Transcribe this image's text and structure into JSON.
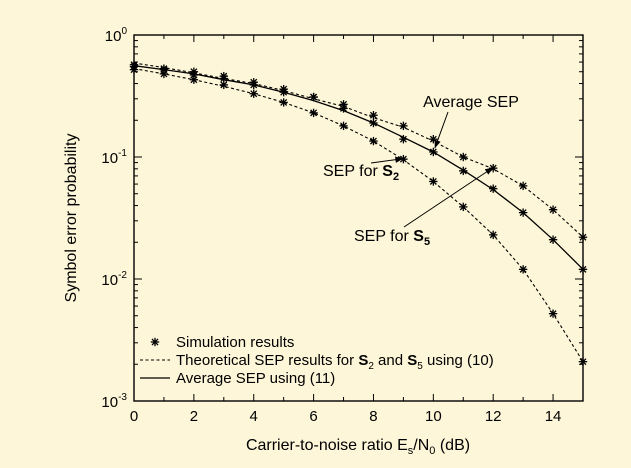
{
  "chart_data": {
    "type": "line",
    "xlabel": "Carrier-to-noise ratio E",
    "xlabel_sub1": "s",
    "xlabel_mid": "/N",
    "xlabel_sub2": "0",
    "xlabel_tail": " (dB)",
    "ylabel": "Symbol error probability",
    "x_ticks": [
      "0",
      "2",
      "4",
      "6",
      "8",
      "10",
      "12",
      "14"
    ],
    "y_ticks": [
      {
        "value": 1,
        "base": "10",
        "exp": "0"
      },
      {
        "value": 0.1,
        "base": "10",
        "exp": "-1"
      },
      {
        "value": 0.01,
        "base": "10",
        "exp": "-2"
      },
      {
        "value": 0.001,
        "base": "10",
        "exp": "-3"
      }
    ],
    "xlim": [
      0,
      15
    ],
    "ylim": [
      0.001,
      1
    ],
    "yscale": "log",
    "grid": false,
    "legend_position": "bottom-left",
    "x": [
      0,
      1,
      2,
      3,
      4,
      5,
      6,
      7,
      8,
      9,
      10,
      11,
      12,
      13,
      14,
      15
    ],
    "series": [
      {
        "style": "dashed",
        "values": [
          0.59,
          0.54,
          0.49,
          0.44,
          0.4,
          0.35,
          0.3,
          0.26,
          0.21,
          0.175,
          0.135,
          0.1,
          0.08,
          0.058,
          0.037,
          0.022
        ]
      },
      {
        "style": "solid",
        "values": [
          0.56,
          0.52,
          0.48,
          0.43,
          0.39,
          0.34,
          0.29,
          0.24,
          0.19,
          0.145,
          0.11,
          0.078,
          0.054,
          0.035,
          0.021,
          0.012
        ]
      },
      {
        "style": "dashed",
        "values": [
          0.53,
          0.48,
          0.43,
          0.38,
          0.33,
          0.28,
          0.23,
          0.18,
          0.135,
          0.095,
          0.063,
          0.039,
          0.023,
          0.012,
          0.0052,
          0.0021
        ]
      },
      {
        "style": "markers",
        "values": [
          0.57,
          0.53,
          0.5,
          0.46,
          0.41,
          0.36,
          0.31,
          0.27,
          0.22,
          0.18,
          0.14,
          0.1,
          0.081,
          0.058,
          0.037,
          0.022
        ]
      },
      {
        "style": "markers",
        "values": [
          0.55,
          0.52,
          0.47,
          0.44,
          0.39,
          0.34,
          0.31,
          0.25,
          0.19,
          0.14,
          0.11,
          0.077,
          0.055,
          0.035,
          0.021,
          0.012
        ]
      },
      {
        "style": "markers",
        "values": [
          0.52,
          0.48,
          0.43,
          0.39,
          0.33,
          0.28,
          0.23,
          0.18,
          0.135,
          0.096,
          0.063,
          0.039,
          0.023,
          0.012,
          0.0052,
          0.0021
        ]
      }
    ],
    "annotations": [
      {
        "text": "Average SEP",
        "bold_part": "",
        "sub": "",
        "arrow_to": [
          10.05,
          0.118
        ]
      },
      {
        "text": "SEP for ",
        "bold_part": "S",
        "sub": "2",
        "arrow_to": [
          9.0,
          0.097
        ]
      },
      {
        "text": "SEP for ",
        "bold_part": "S",
        "sub": "5",
        "arrow_to": [
          12.0,
          0.082
        ]
      }
    ],
    "legend": [
      {
        "style": "markers",
        "text": "Simulation results"
      },
      {
        "style": "dashed",
        "text_a": "Theoretical SEP results for ",
        "b1": "S",
        "s1": "2",
        "text_b": " and ",
        "b2": "S",
        "s2": "5",
        "text_c": " using (10)"
      },
      {
        "style": "solid",
        "text": "Average SEP using (11)"
      }
    ]
  }
}
